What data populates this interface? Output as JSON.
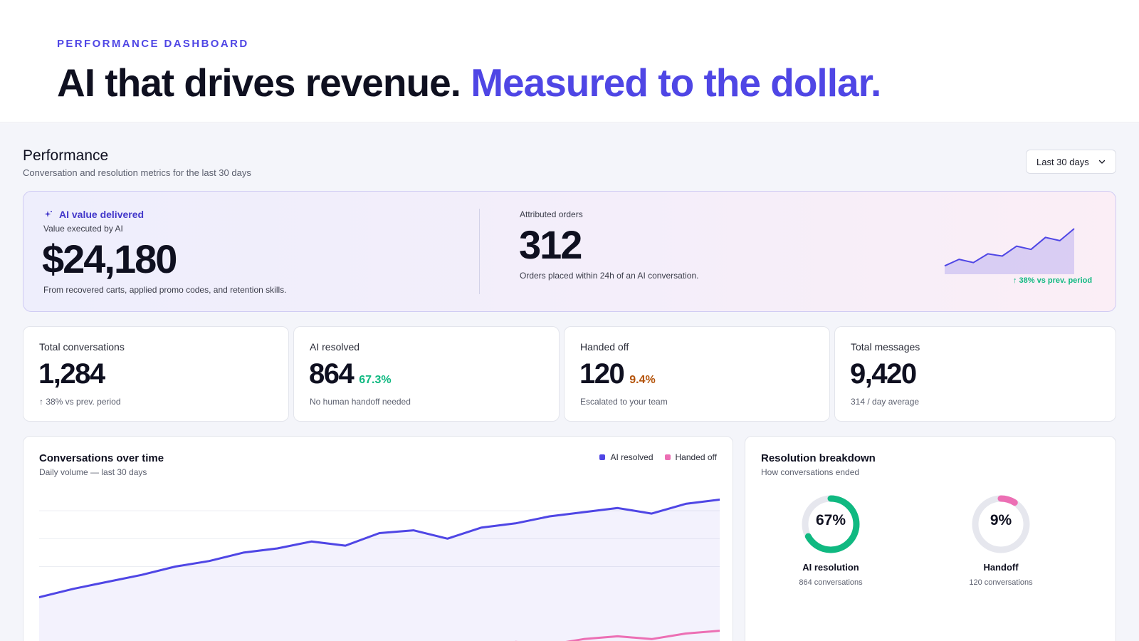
{
  "hero": {
    "eyebrow": "PERFORMANCE DASHBOARD",
    "headline": "AI that drives revenue.",
    "headline_accent": "Measured to the dollar."
  },
  "performance": {
    "title": "Performance",
    "subtitle": "Conversation and resolution metrics for the last 30 days",
    "range_label": "Last 30 days"
  },
  "value_card": {
    "tag": "AI value delivered",
    "label": "Value executed by AI",
    "value": "$24,180",
    "footnote": "From recovered carts, applied promo codes, and retention skills.",
    "orders_label": "Attributed orders",
    "orders_value": "312",
    "orders_footnote": "Orders placed within 24h of an AI conversation.",
    "trend": "↑ 38% vs prev. period",
    "sparkline": [
      10,
      22,
      16,
      32,
      28,
      46,
      40,
      62,
      56,
      78
    ]
  },
  "kpis": [
    {
      "title": "Total conversations",
      "value": "1,284",
      "pct": "",
      "foot": "↑ 38% vs prev. period"
    },
    {
      "title": "AI resolved",
      "value": "864",
      "pct": "67.3%",
      "foot": "No human handoff needed"
    },
    {
      "title": "Handed off",
      "value": "120",
      "pct": "9.4%",
      "foot": "Escalated to your team"
    },
    {
      "title": "Total messages",
      "value": "9,420",
      "pct": "",
      "foot": "314 / day average"
    }
  ],
  "colors": {
    "accent": "#4f46e5",
    "success": "#10b981",
    "warning": "#b45309",
    "handoff": "#ec6fb4",
    "track": "#e6e7ee"
  },
  "chart": {
    "title": "Conversations over time",
    "subtitle": "Daily volume — last 30 days",
    "legend_ai": "AI resolved",
    "legend_handoff": "Handed off"
  },
  "chart_data": {
    "type": "line",
    "x": [
      1,
      2,
      3,
      4,
      5,
      6,
      7,
      8,
      9,
      10,
      11,
      12,
      13,
      14,
      15,
      16,
      17,
      18,
      19,
      20,
      21
    ],
    "ylim": [
      0,
      60
    ],
    "series": [
      {
        "name": "AI resolved",
        "values": [
          19,
          22,
          24.5,
          27,
          30,
          32,
          35,
          36.5,
          39,
          37.5,
          42,
          43,
          40,
          44,
          45.5,
          48,
          49.5,
          51,
          49,
          52.5,
          54
        ]
      },
      {
        "name": "Handed off",
        "values": [
          0,
          0,
          0,
          0,
          0,
          0,
          0,
          0,
          0,
          0,
          1,
          0.5,
          2,
          1,
          3,
          2,
          4,
          5,
          4,
          6,
          7
        ]
      }
    ]
  },
  "breakdown": {
    "title": "Resolution breakdown",
    "subtitle": "How conversations ended",
    "items": [
      {
        "pct_text": "67%",
        "fraction": 0.67,
        "label": "AI resolution",
        "sub": "864 conversations"
      },
      {
        "pct_text": "9%",
        "fraction": 0.09,
        "label": "Handoff",
        "sub": "120 conversations"
      }
    ]
  }
}
